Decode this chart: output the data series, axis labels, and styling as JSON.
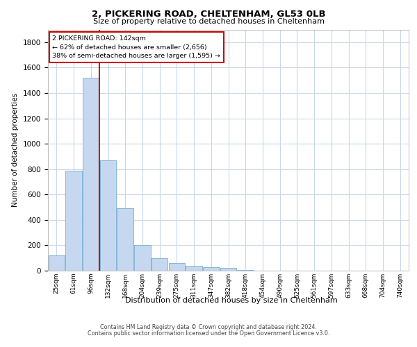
{
  "title1": "2, PICKERING ROAD, CHELTENHAM, GL53 0LB",
  "title2": "Size of property relative to detached houses in Cheltenham",
  "xlabel": "Distribution of detached houses by size in Cheltenham",
  "ylabel": "Number of detached properties",
  "bar_labels": [
    "25sqm",
    "61sqm",
    "96sqm",
    "132sqm",
    "168sqm",
    "204sqm",
    "239sqm",
    "275sqm",
    "311sqm",
    "347sqm",
    "382sqm",
    "418sqm",
    "454sqm",
    "490sqm",
    "525sqm",
    "561sqm",
    "597sqm",
    "633sqm",
    "668sqm",
    "704sqm",
    "740sqm"
  ],
  "bar_values": [
    120,
    790,
    1520,
    870,
    490,
    205,
    100,
    60,
    38,
    28,
    22,
    5,
    2,
    1,
    0,
    0,
    0,
    0,
    0,
    0,
    0
  ],
  "bar_color": "#c5d8f0",
  "bar_edge_color": "#7aadd4",
  "vline_x": 2.5,
  "vline_color": "#cc0000",
  "annotation_line1": "2 PICKERING ROAD: 142sqm",
  "annotation_line2": "← 62% of detached houses are smaller (2,656)",
  "annotation_line3": "38% of semi-detached houses are larger (1,595) →",
  "annotation_box_color": "#cc0000",
  "ylim": [
    0,
    1900
  ],
  "yticks": [
    0,
    200,
    400,
    600,
    800,
    1000,
    1200,
    1400,
    1600,
    1800
  ],
  "footer1": "Contains HM Land Registry data © Crown copyright and database right 2024.",
  "footer2": "Contains public sector information licensed under the Open Government Licence v3.0.",
  "bg_color": "#ffffff",
  "grid_color": "#c8d8e8"
}
